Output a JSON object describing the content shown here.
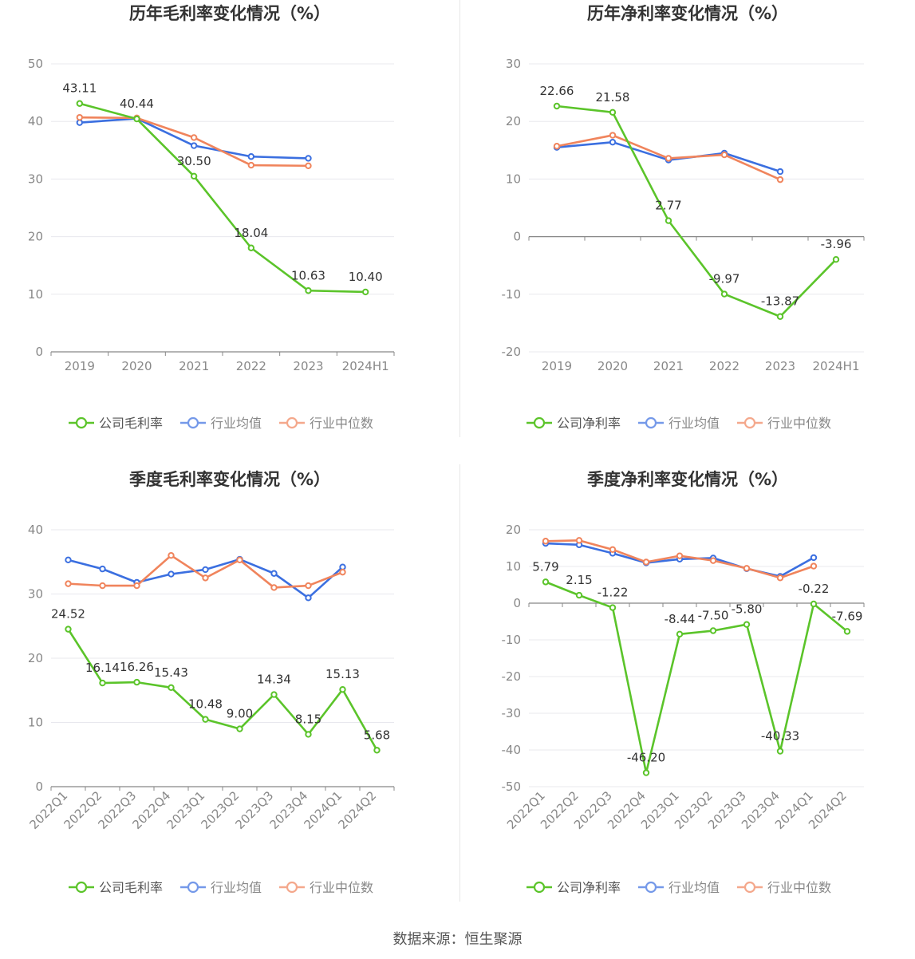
{
  "source": "数据来源：恒生聚源",
  "colors": {
    "company": "#5bc42a",
    "industry_avg": "#3b6fe0",
    "industry_median": "#f0845c"
  },
  "charts": [
    {
      "title": "历年毛利率变化情况（%）",
      "type": "line",
      "categories": [
        "2019",
        "2020",
        "2021",
        "2022",
        "2023",
        "2024H1"
      ],
      "ylim": [
        0,
        50
      ],
      "yticks": [
        0,
        10,
        20,
        30,
        40,
        50
      ],
      "rotate_x": false,
      "series": [
        {
          "name": "公司毛利率",
          "role": "company",
          "values": [
            43.11,
            40.44,
            30.5,
            18.04,
            10.63,
            10.4
          ],
          "labels": [
            "43.11",
            "40.44",
            "30.50",
            "18.04",
            "10.63",
            "10.40"
          ]
        },
        {
          "name": "行业均值",
          "role": "industry_avg",
          "values": [
            39.8,
            40.5,
            35.8,
            33.9,
            33.6,
            null
          ]
        },
        {
          "name": "行业中位数",
          "role": "industry_median",
          "values": [
            40.7,
            40.6,
            37.2,
            32.4,
            32.3,
            null
          ]
        }
      ]
    },
    {
      "title": "历年净利率变化情况（%）",
      "type": "line",
      "categories": [
        "2019",
        "2020",
        "2021",
        "2022",
        "2023",
        "2024H1"
      ],
      "ylim": [
        -20,
        30
      ],
      "yticks": [
        -20,
        -10,
        0,
        10,
        20,
        30
      ],
      "rotate_x": false,
      "series": [
        {
          "name": "公司净利率",
          "role": "company",
          "values": [
            22.66,
            21.58,
            2.77,
            -9.97,
            -13.87,
            -3.96
          ],
          "labels": [
            "22.66",
            "21.58",
            "2.77",
            "-9.97",
            "-13.87",
            "-3.96"
          ]
        },
        {
          "name": "行业均值",
          "role": "industry_avg",
          "values": [
            15.5,
            16.4,
            13.3,
            14.5,
            11.3,
            null
          ]
        },
        {
          "name": "行业中位数",
          "role": "industry_median",
          "values": [
            15.7,
            17.6,
            13.6,
            14.2,
            9.9,
            null
          ]
        }
      ]
    },
    {
      "title": "季度毛利率变化情况（%）",
      "type": "line",
      "categories": [
        "2022Q1",
        "2022Q2",
        "2022Q3",
        "2022Q4",
        "2023Q1",
        "2023Q2",
        "2023Q3",
        "2023Q4",
        "2024Q1",
        "2024Q2"
      ],
      "ylim": [
        0,
        40
      ],
      "yticks": [
        0,
        10,
        20,
        30,
        40
      ],
      "rotate_x": true,
      "series": [
        {
          "name": "公司毛利率",
          "role": "company",
          "values": [
            24.52,
            16.14,
            16.26,
            15.43,
            10.48,
            9.0,
            14.34,
            8.15,
            15.13,
            5.68
          ],
          "labels": [
            "24.52",
            "16.14",
            "16.26",
            "15.43",
            "10.48",
            "9.00",
            "14.34",
            "8.15",
            "15.13",
            "5.68"
          ]
        },
        {
          "name": "行业均值",
          "role": "industry_avg",
          "values": [
            35.3,
            33.9,
            31.8,
            33.1,
            33.8,
            35.4,
            33.2,
            29.4,
            34.2,
            null
          ]
        },
        {
          "name": "行业中位数",
          "role": "industry_median",
          "values": [
            31.6,
            31.3,
            31.3,
            36.0,
            32.5,
            35.3,
            31.0,
            31.3,
            33.4,
            null
          ]
        }
      ]
    },
    {
      "title": "季度净利率变化情况（%）",
      "type": "line",
      "categories": [
        "2022Q1",
        "2022Q2",
        "2022Q3",
        "2022Q4",
        "2023Q1",
        "2023Q2",
        "2023Q3",
        "2023Q4",
        "2024Q1",
        "2024Q2"
      ],
      "ylim": [
        -50,
        20
      ],
      "yticks": [
        -50,
        -40,
        -30,
        -20,
        -10,
        0,
        10,
        20
      ],
      "rotate_x": true,
      "series": [
        {
          "name": "公司净利率",
          "role": "company",
          "values": [
            5.79,
            2.15,
            -1.22,
            -46.2,
            -8.44,
            -7.5,
            -5.8,
            -40.33,
            -0.22,
            -7.69
          ],
          "labels": [
            "5.79",
            "2.15",
            "-1.22",
            "-46.20",
            "-8.44",
            "-7.50",
            "-5.80",
            "-40.33",
            "-0.22",
            "-7.69"
          ]
        },
        {
          "name": "行业均值",
          "role": "industry_avg",
          "values": [
            16.3,
            15.9,
            13.6,
            11.0,
            12.0,
            12.3,
            9.4,
            7.3,
            12.4,
            null
          ]
        },
        {
          "name": "行业中位数",
          "role": "industry_median",
          "values": [
            16.9,
            17.1,
            14.6,
            11.2,
            12.9,
            11.6,
            9.5,
            6.9,
            10.1,
            null
          ]
        }
      ]
    }
  ]
}
